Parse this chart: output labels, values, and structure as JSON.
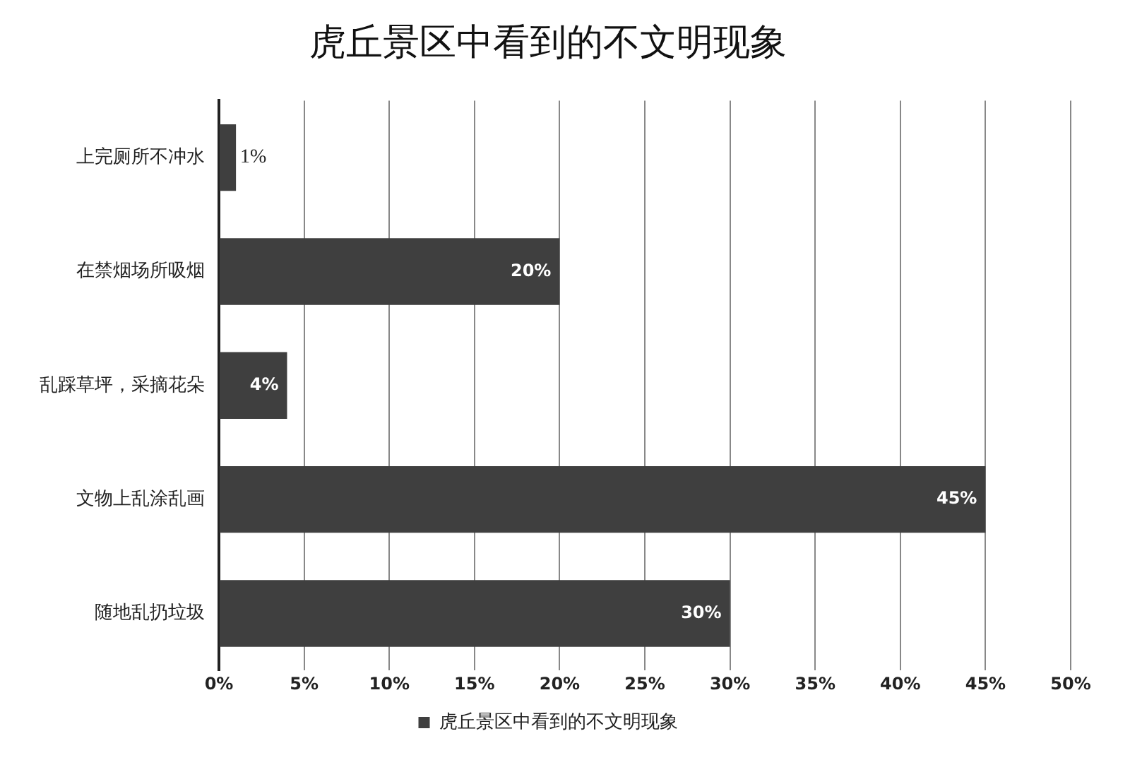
{
  "chart_data": {
    "type": "bar",
    "orientation": "horizontal",
    "title": "虎丘景区中看到的不文明现象",
    "categories": [
      "上完厕所不冲水",
      "在禁烟场所吸烟",
      "乱踩草坪，采摘花朵",
      "文物上乱涂乱画",
      "随地乱扔垃圾"
    ],
    "series": [
      {
        "name": "虎丘景区中看到的不文明现象",
        "color": "#3f3f3f",
        "values": [
          1,
          20,
          4,
          45,
          30
        ],
        "value_labels": [
          "1%",
          "20%",
          "4%",
          "45%",
          "30%"
        ]
      }
    ],
    "xlim": [
      0,
      50
    ],
    "xticks": [
      {
        "value": 0,
        "label": "0%"
      },
      {
        "value": 5,
        "label": "5%"
      },
      {
        "value": 10,
        "label": "10%"
      },
      {
        "value": 15,
        "label": "15%"
      },
      {
        "value": 20,
        "label": "20%"
      },
      {
        "value": 25,
        "label": "25%"
      },
      {
        "value": 30,
        "label": "30%"
      },
      {
        "value": 35,
        "label": "35%"
      },
      {
        "value": 40,
        "label": "40%"
      },
      {
        "value": 45,
        "label": "45%"
      },
      {
        "value": 50,
        "label": "50%"
      }
    ],
    "grid": "x",
    "legend": "bottom"
  }
}
